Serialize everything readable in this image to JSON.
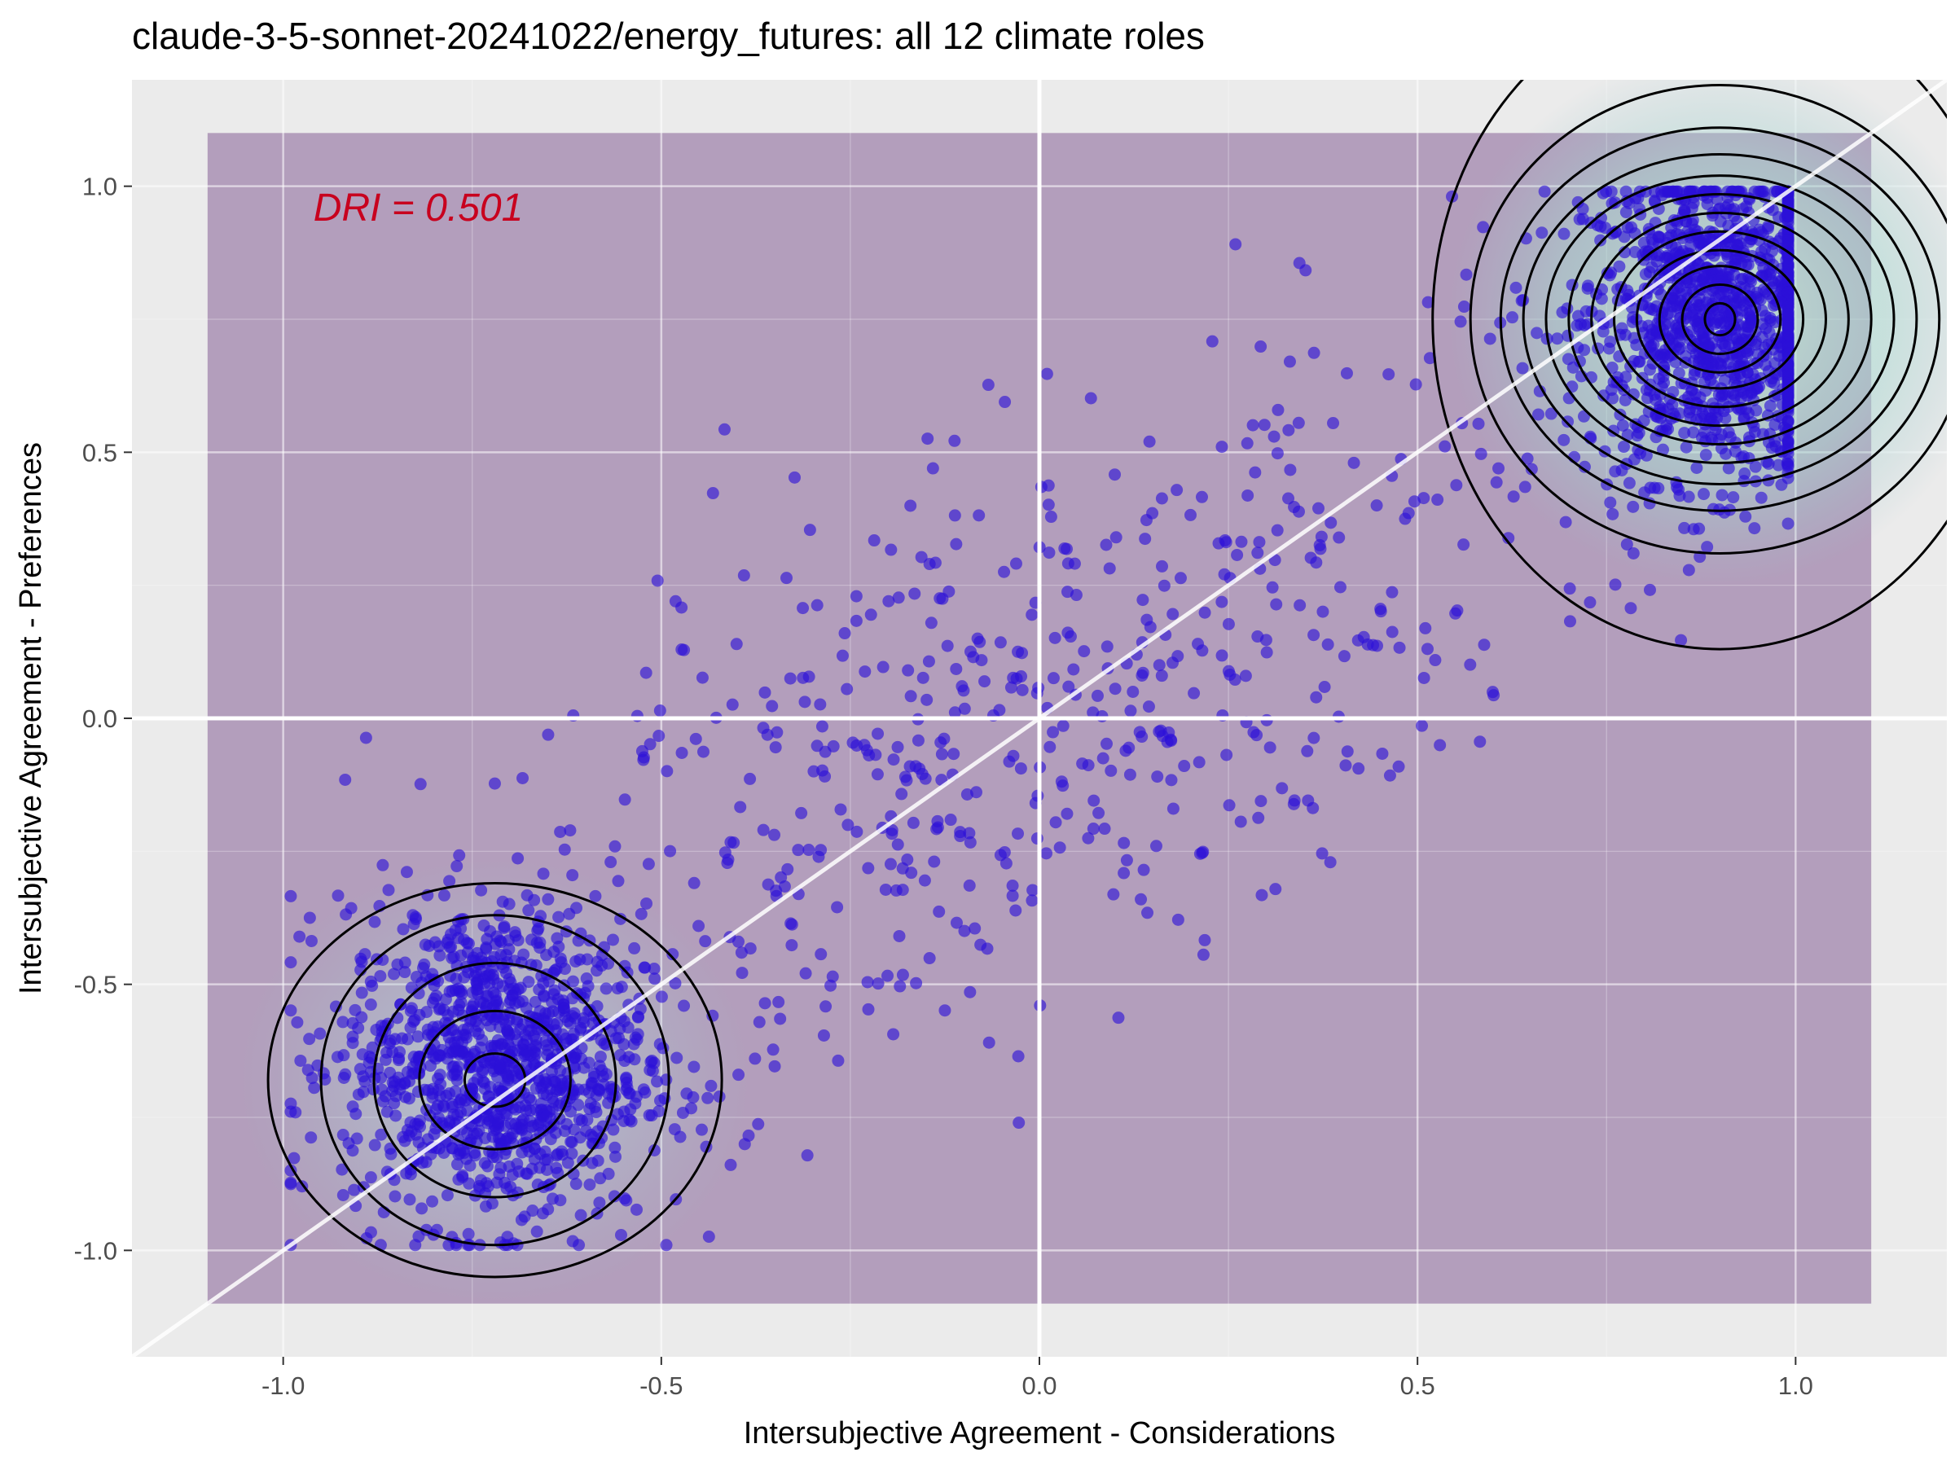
{
  "chart_data": {
    "type": "scatter",
    "title": "claude-3-5-sonnet-20241022/energy_futures: all 12 climate roles",
    "xlabel": "Intersubjective Agreement - Considerations",
    "ylabel": "Intersubjective Agreement - Preferences",
    "xlim": [
      -1.2,
      1.2
    ],
    "ylim": [
      -1.2,
      1.2
    ],
    "x_ticks": [
      -1.0,
      -0.5,
      0.0,
      0.5,
      1.0
    ],
    "y_ticks": [
      -1.0,
      -0.5,
      0.0,
      0.5,
      1.0
    ],
    "x_tick_labels": [
      "-1.0",
      "-0.5",
      "0.0",
      "0.5",
      "1.0"
    ],
    "y_tick_labels": [
      "-1.0",
      "-0.5",
      "0.0",
      "0.5",
      "1.0"
    ],
    "grid": true,
    "shaded_region": {
      "x": [
        -1.1,
        1.1
      ],
      "y": [
        -1.1,
        1.1
      ],
      "color": "#5e2a76"
    },
    "reference_lines": [
      "x = 0",
      "y = 0",
      "y = x"
    ],
    "annotation": "DRI = 0.501",
    "annotation_color": "#c8001e",
    "point_color": "#2b10d8",
    "density_contours": true,
    "clusters": [
      {
        "center": [
          0.9,
          0.75
        ],
        "spread": [
          0.09,
          0.15
        ],
        "share": 0.42
      },
      {
        "center": [
          -0.72,
          -0.65
        ],
        "spread": [
          0.1,
          0.15
        ],
        "share": 0.38
      },
      {
        "center": [
          0.0,
          0.0
        ],
        "spread": [
          0.45,
          0.4
        ],
        "share": 0.2
      }
    ],
    "point_count_estimate": 3000,
    "contours": [
      {
        "cx": 0.9,
        "cy": 0.75,
        "rx": [
          0.02,
          0.05,
          0.08,
          0.11,
          0.14,
          0.17,
          0.2,
          0.23,
          0.26,
          0.29,
          0.33,
          0.38
        ],
        "ry": [
          0.03,
          0.065,
          0.1,
          0.13,
          0.165,
          0.2,
          0.235,
          0.27,
          0.31,
          0.36,
          0.44,
          0.62
        ]
      },
      {
        "cx": -0.72,
        "cy": -0.68,
        "rx": [
          0.04,
          0.1,
          0.16,
          0.23,
          0.3
        ],
        "ry": [
          0.05,
          0.13,
          0.22,
          0.31,
          0.37
        ]
      }
    ]
  }
}
